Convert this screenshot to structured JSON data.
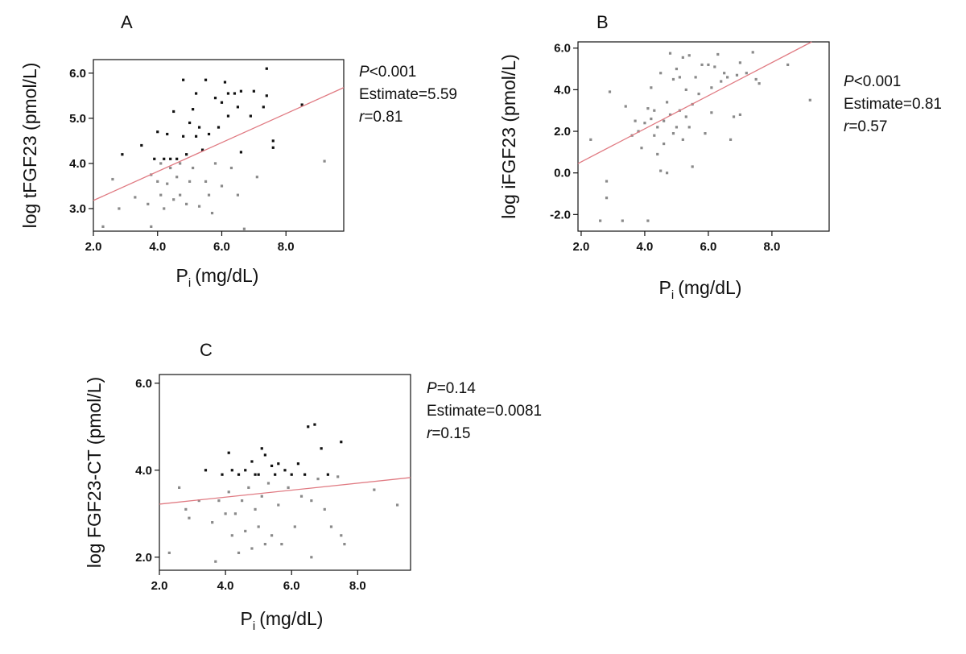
{
  "chart_data": [
    {
      "id": "A",
      "type": "scatter",
      "panel_label": "A",
      "ylabel": "log tFGF23 (pmol/L)",
      "xlabel_main": "P",
      "xlabel_sub": "i",
      "xlabel_rest": "(mg/dL)",
      "xlim": [
        2.0,
        9.8
      ],
      "ylim": [
        2.5,
        6.3
      ],
      "xticks": [
        2.0,
        4.0,
        6.0,
        8.0
      ],
      "yticks": [
        3.0,
        4.0,
        5.0,
        6.0
      ],
      "xtick_labels": [
        "2.0",
        "4.0",
        "6.0",
        "8.0"
      ],
      "ytick_labels": [
        "3.0",
        "4.0",
        "5.0",
        "6.0"
      ],
      "fit_line": {
        "x0": 2.0,
        "y0": 3.18,
        "x1": 9.8,
        "y1": 5.68
      },
      "stats": [
        {
          "prefix": "P",
          "italic_prefix": true,
          "rest": "<0.001"
        },
        {
          "prefix": "",
          "italic_prefix": false,
          "rest": "Estimate=5.59"
        },
        {
          "prefix": "r",
          "italic_prefix": true,
          "rest": "=0.81"
        }
      ],
      "points": [
        {
          "x": 2.3,
          "y": 2.6,
          "c": "gray"
        },
        {
          "x": 2.6,
          "y": 3.65,
          "c": "gray"
        },
        {
          "x": 2.8,
          "y": 3.0,
          "c": "gray"
        },
        {
          "x": 2.9,
          "y": 4.2,
          "c": "dark"
        },
        {
          "x": 3.3,
          "y": 3.25,
          "c": "gray"
        },
        {
          "x": 3.5,
          "y": 4.4,
          "c": "dark"
        },
        {
          "x": 3.7,
          "y": 3.1,
          "c": "gray"
        },
        {
          "x": 3.8,
          "y": 2.6,
          "c": "gray"
        },
        {
          "x": 3.8,
          "y": 3.75,
          "c": "gray"
        },
        {
          "x": 3.9,
          "y": 4.1,
          "c": "dark"
        },
        {
          "x": 4.0,
          "y": 3.6,
          "c": "gray"
        },
        {
          "x": 4.0,
          "y": 4.7,
          "c": "dark"
        },
        {
          "x": 4.1,
          "y": 3.3,
          "c": "gray"
        },
        {
          "x": 4.1,
          "y": 4.0,
          "c": "gray"
        },
        {
          "x": 4.2,
          "y": 4.1,
          "c": "dark"
        },
        {
          "x": 4.2,
          "y": 3.0,
          "c": "gray"
        },
        {
          "x": 4.3,
          "y": 3.55,
          "c": "gray"
        },
        {
          "x": 4.3,
          "y": 4.65,
          "c": "dark"
        },
        {
          "x": 4.4,
          "y": 3.9,
          "c": "gray"
        },
        {
          "x": 4.4,
          "y": 4.1,
          "c": "dark"
        },
        {
          "x": 4.5,
          "y": 3.2,
          "c": "gray"
        },
        {
          "x": 4.5,
          "y": 5.15,
          "c": "dark"
        },
        {
          "x": 4.6,
          "y": 4.1,
          "c": "dark"
        },
        {
          "x": 4.6,
          "y": 3.7,
          "c": "gray"
        },
        {
          "x": 4.7,
          "y": 3.3,
          "c": "gray"
        },
        {
          "x": 4.7,
          "y": 4.0,
          "c": "gray"
        },
        {
          "x": 4.8,
          "y": 5.85,
          "c": "dark"
        },
        {
          "x": 4.8,
          "y": 4.6,
          "c": "dark"
        },
        {
          "x": 4.9,
          "y": 3.1,
          "c": "gray"
        },
        {
          "x": 4.9,
          "y": 4.2,
          "c": "dark"
        },
        {
          "x": 5.0,
          "y": 3.6,
          "c": "gray"
        },
        {
          "x": 5.0,
          "y": 4.9,
          "c": "dark"
        },
        {
          "x": 5.1,
          "y": 5.2,
          "c": "dark"
        },
        {
          "x": 5.1,
          "y": 3.9,
          "c": "gray"
        },
        {
          "x": 5.2,
          "y": 5.55,
          "c": "dark"
        },
        {
          "x": 5.2,
          "y": 4.6,
          "c": "dark"
        },
        {
          "x": 5.3,
          "y": 3.05,
          "c": "gray"
        },
        {
          "x": 5.3,
          "y": 4.8,
          "c": "dark"
        },
        {
          "x": 5.4,
          "y": 4.3,
          "c": "dark"
        },
        {
          "x": 5.5,
          "y": 5.85,
          "c": "dark"
        },
        {
          "x": 5.5,
          "y": 3.6,
          "c": "gray"
        },
        {
          "x": 5.6,
          "y": 4.65,
          "c": "dark"
        },
        {
          "x": 5.6,
          "y": 3.3,
          "c": "gray"
        },
        {
          "x": 5.7,
          "y": 2.9,
          "c": "gray"
        },
        {
          "x": 5.8,
          "y": 5.45,
          "c": "dark"
        },
        {
          "x": 5.8,
          "y": 4.0,
          "c": "gray"
        },
        {
          "x": 5.9,
          "y": 4.8,
          "c": "dark"
        },
        {
          "x": 6.0,
          "y": 5.35,
          "c": "dark"
        },
        {
          "x": 6.0,
          "y": 3.5,
          "c": "gray"
        },
        {
          "x": 6.1,
          "y": 5.8,
          "c": "dark"
        },
        {
          "x": 6.2,
          "y": 5.55,
          "c": "dark"
        },
        {
          "x": 6.2,
          "y": 5.05,
          "c": "dark"
        },
        {
          "x": 6.3,
          "y": 3.9,
          "c": "gray"
        },
        {
          "x": 6.4,
          "y": 5.55,
          "c": "dark"
        },
        {
          "x": 6.5,
          "y": 5.25,
          "c": "dark"
        },
        {
          "x": 6.5,
          "y": 3.3,
          "c": "gray"
        },
        {
          "x": 6.6,
          "y": 5.6,
          "c": "dark"
        },
        {
          "x": 6.6,
          "y": 4.25,
          "c": "dark"
        },
        {
          "x": 6.7,
          "y": 2.55,
          "c": "gray"
        },
        {
          "x": 6.9,
          "y": 5.05,
          "c": "dark"
        },
        {
          "x": 7.0,
          "y": 5.6,
          "c": "dark"
        },
        {
          "x": 7.1,
          "y": 3.7,
          "c": "gray"
        },
        {
          "x": 7.3,
          "y": 5.25,
          "c": "dark"
        },
        {
          "x": 7.4,
          "y": 6.1,
          "c": "dark"
        },
        {
          "x": 7.4,
          "y": 5.5,
          "c": "dark"
        },
        {
          "x": 7.6,
          "y": 4.5,
          "c": "dark"
        },
        {
          "x": 7.6,
          "y": 4.35,
          "c": "dark"
        },
        {
          "x": 8.5,
          "y": 5.3,
          "c": "dark"
        },
        {
          "x": 9.2,
          "y": 4.05,
          "c": "gray"
        }
      ]
    },
    {
      "id": "B",
      "type": "scatter",
      "panel_label": "B",
      "ylabel": "log iFGF23  (pmol/L)",
      "xlabel_main": "P",
      "xlabel_sub": "i",
      "xlabel_rest": "(mg/dL)",
      "xlim": [
        1.9,
        9.8
      ],
      "ylim": [
        -2.8,
        6.3
      ],
      "xticks": [
        2.0,
        4.0,
        6.0,
        8.0
      ],
      "yticks": [
        -2.0,
        0.0,
        2.0,
        4.0,
        6.0
      ],
      "xtick_labels": [
        "2.0",
        "4.0",
        "6.0",
        "8.0"
      ],
      "ytick_labels": [
        "-2.0",
        "0.0",
        "2.0",
        "4.0",
        "6.0"
      ],
      "fit_line": {
        "x0": 1.9,
        "y0": 0.45,
        "x1": 9.25,
        "y1": 6.3
      },
      "stats": [
        {
          "prefix": "P",
          "italic_prefix": true,
          "rest": "<0.001"
        },
        {
          "prefix": "",
          "italic_prefix": false,
          "rest": "Estimate=0.81"
        },
        {
          "prefix": "r",
          "italic_prefix": true,
          "rest": "=0.57"
        }
      ],
      "points": [
        {
          "x": 2.3,
          "y": 1.6,
          "c": "gray"
        },
        {
          "x": 2.6,
          "y": -2.3,
          "c": "gray"
        },
        {
          "x": 2.8,
          "y": -1.2,
          "c": "gray"
        },
        {
          "x": 2.8,
          "y": -0.4,
          "c": "gray"
        },
        {
          "x": 2.9,
          "y": 3.9,
          "c": "gray"
        },
        {
          "x": 3.3,
          "y": -2.3,
          "c": "gray"
        },
        {
          "x": 3.4,
          "y": 3.2,
          "c": "gray"
        },
        {
          "x": 3.6,
          "y": 1.8,
          "c": "gray"
        },
        {
          "x": 3.7,
          "y": 2.5,
          "c": "gray"
        },
        {
          "x": 3.8,
          "y": 2.0,
          "c": "gray"
        },
        {
          "x": 3.9,
          "y": 1.2,
          "c": "gray"
        },
        {
          "x": 4.0,
          "y": 2.4,
          "c": "gray"
        },
        {
          "x": 4.1,
          "y": -2.3,
          "c": "gray"
        },
        {
          "x": 4.1,
          "y": 3.1,
          "c": "gray"
        },
        {
          "x": 4.2,
          "y": 2.6,
          "c": "gray"
        },
        {
          "x": 4.2,
          "y": 4.1,
          "c": "gray"
        },
        {
          "x": 4.3,
          "y": 1.8,
          "c": "gray"
        },
        {
          "x": 4.3,
          "y": 3.0,
          "c": "gray"
        },
        {
          "x": 4.4,
          "y": 2.2,
          "c": "gray"
        },
        {
          "x": 4.4,
          "y": 0.9,
          "c": "gray"
        },
        {
          "x": 4.5,
          "y": 4.8,
          "c": "gray"
        },
        {
          "x": 4.5,
          "y": 0.1,
          "c": "gray"
        },
        {
          "x": 4.6,
          "y": 2.5,
          "c": "gray"
        },
        {
          "x": 4.6,
          "y": 1.4,
          "c": "gray"
        },
        {
          "x": 4.7,
          "y": 3.4,
          "c": "gray"
        },
        {
          "x": 4.7,
          "y": 0.0,
          "c": "gray"
        },
        {
          "x": 4.8,
          "y": 5.75,
          "c": "gray"
        },
        {
          "x": 4.8,
          "y": 2.8,
          "c": "gray"
        },
        {
          "x": 4.9,
          "y": 4.5,
          "c": "gray"
        },
        {
          "x": 4.9,
          "y": 1.9,
          "c": "gray"
        },
        {
          "x": 5.0,
          "y": 5.0,
          "c": "gray"
        },
        {
          "x": 5.0,
          "y": 2.2,
          "c": "gray"
        },
        {
          "x": 5.1,
          "y": 3.0,
          "c": "gray"
        },
        {
          "x": 5.1,
          "y": 4.6,
          "c": "gray"
        },
        {
          "x": 5.2,
          "y": 5.55,
          "c": "gray"
        },
        {
          "x": 5.2,
          "y": 1.6,
          "c": "gray"
        },
        {
          "x": 5.3,
          "y": 2.7,
          "c": "gray"
        },
        {
          "x": 5.3,
          "y": 4.0,
          "c": "gray"
        },
        {
          "x": 5.4,
          "y": 5.65,
          "c": "gray"
        },
        {
          "x": 5.4,
          "y": 2.2,
          "c": "gray"
        },
        {
          "x": 5.5,
          "y": 0.3,
          "c": "gray"
        },
        {
          "x": 5.5,
          "y": 3.3,
          "c": "gray"
        },
        {
          "x": 5.6,
          "y": 4.6,
          "c": "gray"
        },
        {
          "x": 5.7,
          "y": 3.8,
          "c": "gray"
        },
        {
          "x": 5.8,
          "y": 5.2,
          "c": "gray"
        },
        {
          "x": 5.9,
          "y": 1.9,
          "c": "gray"
        },
        {
          "x": 6.0,
          "y": 5.2,
          "c": "gray"
        },
        {
          "x": 6.1,
          "y": 2.9,
          "c": "gray"
        },
        {
          "x": 6.1,
          "y": 4.1,
          "c": "gray"
        },
        {
          "x": 6.2,
          "y": 5.1,
          "c": "gray"
        },
        {
          "x": 6.3,
          "y": 5.7,
          "c": "gray"
        },
        {
          "x": 6.4,
          "y": 4.4,
          "c": "gray"
        },
        {
          "x": 6.5,
          "y": 4.8,
          "c": "gray"
        },
        {
          "x": 6.6,
          "y": 4.6,
          "c": "gray"
        },
        {
          "x": 6.7,
          "y": 1.6,
          "c": "gray"
        },
        {
          "x": 6.8,
          "y": 2.7,
          "c": "gray"
        },
        {
          "x": 6.9,
          "y": 4.7,
          "c": "gray"
        },
        {
          "x": 7.0,
          "y": 5.3,
          "c": "gray"
        },
        {
          "x": 7.0,
          "y": 2.8,
          "c": "gray"
        },
        {
          "x": 7.2,
          "y": 4.8,
          "c": "gray"
        },
        {
          "x": 7.4,
          "y": 5.8,
          "c": "gray"
        },
        {
          "x": 7.5,
          "y": 4.5,
          "c": "gray"
        },
        {
          "x": 7.6,
          "y": 4.3,
          "c": "gray"
        },
        {
          "x": 8.5,
          "y": 5.2,
          "c": "gray"
        },
        {
          "x": 9.2,
          "y": 3.5,
          "c": "gray"
        }
      ]
    },
    {
      "id": "C",
      "type": "scatter",
      "panel_label": "C",
      "ylabel": "log FGF23-CT (pmol/L)",
      "xlabel_main": "P",
      "xlabel_sub": "i",
      "xlabel_rest": "(mg/dL)",
      "xlim": [
        2.0,
        9.6
      ],
      "ylim": [
        1.7,
        6.2
      ],
      "xticks": [
        2.0,
        4.0,
        6.0,
        8.0
      ],
      "yticks": [
        2.0,
        4.0,
        6.0
      ],
      "xtick_labels": [
        "2.0",
        "4.0",
        "6.0",
        "8.0"
      ],
      "ytick_labels": [
        "2.0",
        "4.0",
        "6.0"
      ],
      "fit_line": {
        "x0": 2.0,
        "y0": 3.22,
        "x1": 9.6,
        "y1": 3.83
      },
      "stats": [
        {
          "prefix": "P",
          "italic_prefix": true,
          "rest": "=0.14"
        },
        {
          "prefix": "",
          "italic_prefix": false,
          "rest": "Estimate=0.0081"
        },
        {
          "prefix": "r",
          "italic_prefix": true,
          "rest": "=0.15"
        }
      ],
      "points": [
        {
          "x": 2.3,
          "y": 2.1,
          "c": "gray"
        },
        {
          "x": 2.6,
          "y": 3.6,
          "c": "gray"
        },
        {
          "x": 2.8,
          "y": 3.1,
          "c": "gray"
        },
        {
          "x": 2.9,
          "y": 2.9,
          "c": "gray"
        },
        {
          "x": 3.2,
          "y": 3.3,
          "c": "gray"
        },
        {
          "x": 3.4,
          "y": 4.0,
          "c": "dark"
        },
        {
          "x": 3.6,
          "y": 2.8,
          "c": "gray"
        },
        {
          "x": 3.7,
          "y": 1.9,
          "c": "gray"
        },
        {
          "x": 3.8,
          "y": 3.3,
          "c": "gray"
        },
        {
          "x": 3.9,
          "y": 3.9,
          "c": "dark"
        },
        {
          "x": 4.0,
          "y": 3.0,
          "c": "gray"
        },
        {
          "x": 4.1,
          "y": 3.5,
          "c": "gray"
        },
        {
          "x": 4.1,
          "y": 4.4,
          "c": "dark"
        },
        {
          "x": 4.2,
          "y": 2.5,
          "c": "gray"
        },
        {
          "x": 4.2,
          "y": 4.0,
          "c": "dark"
        },
        {
          "x": 4.3,
          "y": 3.0,
          "c": "gray"
        },
        {
          "x": 4.4,
          "y": 3.9,
          "c": "dark"
        },
        {
          "x": 4.4,
          "y": 2.1,
          "c": "gray"
        },
        {
          "x": 4.5,
          "y": 3.3,
          "c": "gray"
        },
        {
          "x": 4.6,
          "y": 4.0,
          "c": "dark"
        },
        {
          "x": 4.6,
          "y": 2.6,
          "c": "gray"
        },
        {
          "x": 4.7,
          "y": 3.6,
          "c": "gray"
        },
        {
          "x": 4.8,
          "y": 4.2,
          "c": "dark"
        },
        {
          "x": 4.8,
          "y": 2.2,
          "c": "gray"
        },
        {
          "x": 4.9,
          "y": 3.9,
          "c": "dark"
        },
        {
          "x": 4.9,
          "y": 3.1,
          "c": "gray"
        },
        {
          "x": 5.0,
          "y": 2.7,
          "c": "gray"
        },
        {
          "x": 5.0,
          "y": 3.9,
          "c": "dark"
        },
        {
          "x": 5.1,
          "y": 4.5,
          "c": "dark"
        },
        {
          "x": 5.1,
          "y": 3.4,
          "c": "gray"
        },
        {
          "x": 5.2,
          "y": 4.35,
          "c": "dark"
        },
        {
          "x": 5.2,
          "y": 2.3,
          "c": "gray"
        },
        {
          "x": 5.3,
          "y": 3.7,
          "c": "gray"
        },
        {
          "x": 5.4,
          "y": 4.1,
          "c": "dark"
        },
        {
          "x": 5.4,
          "y": 2.5,
          "c": "gray"
        },
        {
          "x": 5.5,
          "y": 3.9,
          "c": "dark"
        },
        {
          "x": 5.6,
          "y": 4.15,
          "c": "dark"
        },
        {
          "x": 5.6,
          "y": 3.2,
          "c": "gray"
        },
        {
          "x": 5.7,
          "y": 2.3,
          "c": "gray"
        },
        {
          "x": 5.8,
          "y": 4.0,
          "c": "dark"
        },
        {
          "x": 5.9,
          "y": 3.6,
          "c": "gray"
        },
        {
          "x": 6.0,
          "y": 3.9,
          "c": "dark"
        },
        {
          "x": 6.1,
          "y": 2.7,
          "c": "gray"
        },
        {
          "x": 6.2,
          "y": 4.15,
          "c": "dark"
        },
        {
          "x": 6.3,
          "y": 3.4,
          "c": "gray"
        },
        {
          "x": 6.4,
          "y": 3.9,
          "c": "dark"
        },
        {
          "x": 6.5,
          "y": 5.0,
          "c": "dark"
        },
        {
          "x": 6.6,
          "y": 2.0,
          "c": "gray"
        },
        {
          "x": 6.6,
          "y": 3.3,
          "c": "gray"
        },
        {
          "x": 6.7,
          "y": 5.05,
          "c": "dark"
        },
        {
          "x": 6.8,
          "y": 3.8,
          "c": "gray"
        },
        {
          "x": 6.9,
          "y": 4.5,
          "c": "dark"
        },
        {
          "x": 7.0,
          "y": 3.1,
          "c": "gray"
        },
        {
          "x": 7.1,
          "y": 3.9,
          "c": "dark"
        },
        {
          "x": 7.2,
          "y": 2.7,
          "c": "gray"
        },
        {
          "x": 7.4,
          "y": 3.85,
          "c": "gray"
        },
        {
          "x": 7.5,
          "y": 4.65,
          "c": "dark"
        },
        {
          "x": 7.5,
          "y": 2.5,
          "c": "gray"
        },
        {
          "x": 7.6,
          "y": 2.3,
          "c": "gray"
        },
        {
          "x": 8.5,
          "y": 3.55,
          "c": "gray"
        },
        {
          "x": 9.2,
          "y": 3.2,
          "c": "gray"
        }
      ]
    }
  ],
  "colors": {
    "fit_line": "#e07a82",
    "point_dark": "#111111",
    "point_gray": "#8a8a8a",
    "frame": "#111111"
  }
}
